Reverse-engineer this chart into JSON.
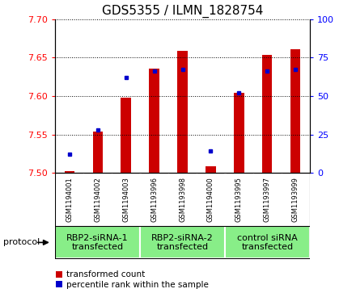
{
  "title": "GDS5355 / ILMN_1828754",
  "samples": [
    "GSM1194001",
    "GSM1194002",
    "GSM1194003",
    "GSM1193996",
    "GSM1193998",
    "GSM1194000",
    "GSM1193995",
    "GSM1193997",
    "GSM1193999"
  ],
  "transformed_counts": [
    7.502,
    7.554,
    7.598,
    7.636,
    7.659,
    7.509,
    7.604,
    7.653,
    7.661
  ],
  "percentile_ranks": [
    12,
    28,
    62,
    66,
    67,
    14,
    52,
    66,
    67
  ],
  "ylim_left": [
    7.5,
    7.7
  ],
  "ylim_right": [
    0,
    100
  ],
  "yticks_left": [
    7.5,
    7.55,
    7.6,
    7.65,
    7.7
  ],
  "yticks_right": [
    0,
    25,
    50,
    75,
    100
  ],
  "bar_color": "#cc0000",
  "dot_color": "#0000cc",
  "bar_bottom": 7.5,
  "protocols": [
    {
      "label": "RBP2-siRNA-1\ntransfected",
      "start": 0,
      "end": 3
    },
    {
      "label": "RBP2-siRNA-2\ntransfected",
      "start": 3,
      "end": 6
    },
    {
      "label": "control siRNA\ntransfected",
      "start": 6,
      "end": 9
    }
  ],
  "legend_labels": [
    "transformed count",
    "percentile rank within the sample"
  ],
  "legend_colors": [
    "#cc0000",
    "#0000cc"
  ],
  "sample_box_color": "#d8d8d8",
  "protocol_box_color": "#88ee88",
  "plot_bg_color": "#ffffff",
  "title_fontsize": 11,
  "tick_fontsize": 8,
  "sample_fontsize": 6,
  "proto_fontsize": 8,
  "legend_fontsize": 7.5
}
